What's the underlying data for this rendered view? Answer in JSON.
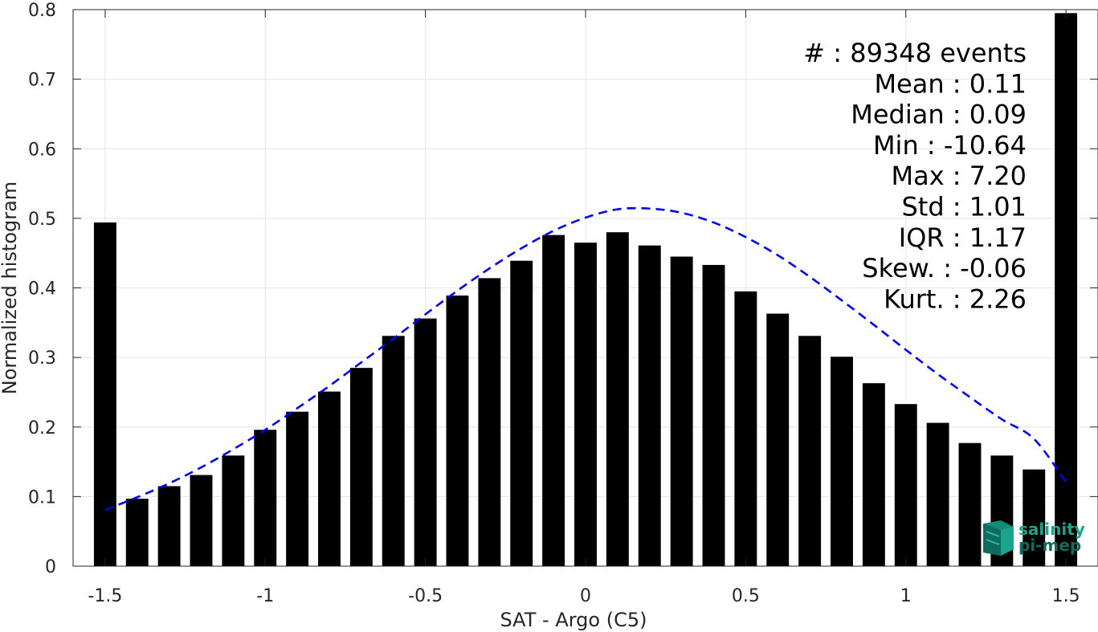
{
  "chart_data": {
    "type": "bar",
    "xlabel": "SAT - Argo (C5)",
    "ylabel": "Normalized histogram",
    "xlim": [
      -1.6,
      1.6
    ],
    "ylim": [
      0,
      0.8
    ],
    "grid": true,
    "x_ticks": [
      -1.5,
      -1,
      -0.5,
      0,
      0.5,
      1,
      1.5
    ],
    "x_tick_labels": [
      "-1.5",
      "-1",
      "-0.5",
      "0",
      "0.5",
      "1",
      "1.5"
    ],
    "y_ticks": [
      0,
      0.1,
      0.2,
      0.3,
      0.4,
      0.5,
      0.6,
      0.7,
      0.8
    ],
    "y_tick_labels": [
      "0",
      "0.1",
      "0.2",
      "0.3",
      "0.4",
      "0.5",
      "0.6",
      "0.7",
      "0.8"
    ],
    "bar_width": 0.07,
    "series": [
      {
        "x": [
          -1.5,
          -1.4,
          -1.3,
          -1.2,
          -1.1,
          -1.0,
          -0.9,
          -0.8,
          -0.7,
          -0.6,
          -0.5,
          -0.4,
          -0.3,
          -0.2,
          -0.1,
          0.0,
          0.1,
          0.2,
          0.3,
          0.4,
          0.5,
          0.6,
          0.7,
          0.8,
          0.9,
          1.0,
          1.1,
          1.2,
          1.3,
          1.4,
          1.5
        ],
        "values": [
          0.494,
          0.097,
          0.115,
          0.131,
          0.159,
          0.196,
          0.222,
          0.251,
          0.285,
          0.331,
          0.356,
          0.389,
          0.414,
          0.439,
          0.476,
          0.465,
          0.48,
          0.461,
          0.445,
          0.433,
          0.395,
          0.363,
          0.331,
          0.301,
          0.263,
          0.233,
          0.206,
          0.177,
          0.159,
          0.139,
          0.795
        ],
        "color": "#000000"
      }
    ],
    "fit_curve": {
      "style": "dashed",
      "color": "#0000ee",
      "x": [
        -1.5,
        -1.4,
        -1.3,
        -1.2,
        -1.1,
        -1.0,
        -0.9,
        -0.8,
        -0.7,
        -0.6,
        -0.5,
        -0.4,
        -0.3,
        -0.2,
        -0.1,
        0.0,
        0.1,
        0.2,
        0.3,
        0.4,
        0.5,
        0.6,
        0.7,
        0.8,
        0.9,
        1.0,
        1.1,
        1.2,
        1.3,
        1.4,
        1.5
      ],
      "y": [
        0.081,
        0.099,
        0.119,
        0.142,
        0.168,
        0.196,
        0.227,
        0.259,
        0.293,
        0.327,
        0.362,
        0.396,
        0.428,
        0.457,
        0.482,
        0.501,
        0.513,
        0.514,
        0.508,
        0.494,
        0.473,
        0.447,
        0.416,
        0.382,
        0.347,
        0.311,
        0.276,
        0.243,
        0.211,
        0.183,
        0.121
      ]
    },
    "annotation": {
      "placement": "top-right",
      "lines": [
        "#  : 89348 events",
        "Mean : 0.11",
        "Median : 0.09",
        "Min : -10.64",
        "Max : 7.20",
        "Std : 1.01",
        "IQR : 1.17",
        "Skew. : -0.06",
        "Kurt. : 2.26"
      ]
    }
  },
  "logo": {
    "line1": "salinity",
    "line2": "pi-mep",
    "color_primary": "#1aa58c",
    "color_secondary": "#0f6b5e"
  }
}
